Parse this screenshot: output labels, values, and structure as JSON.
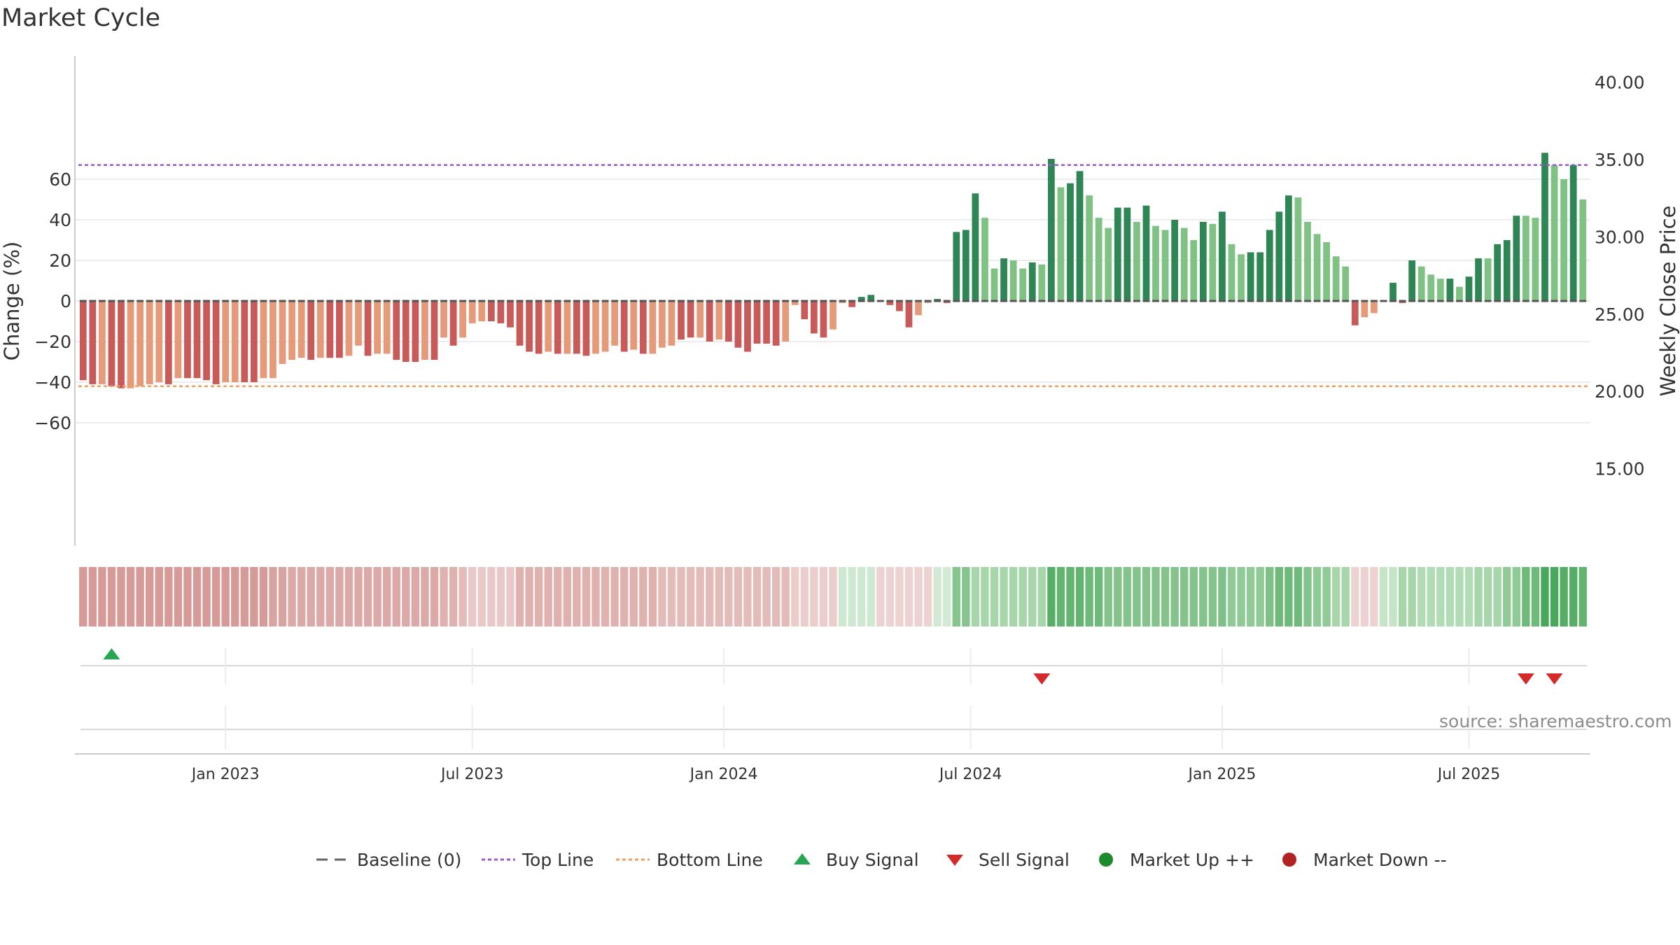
{
  "title": "Market Cycle",
  "source": "source: sharemaestro.com",
  "colors": {
    "up_dark": "#2e8654",
    "up_light": "#80c283",
    "down_dark": "#c85a5a",
    "down_light": "#e59a7a",
    "top_line": "#9b59d0",
    "bottom_line": "#f0a060",
    "buy": "#27a555",
    "sell": "#d42a2a",
    "market_up": "#1e8a2e",
    "market_down": "#b22222"
  },
  "legend": [
    {
      "key": "baseline",
      "label": "Baseline (0)"
    },
    {
      "key": "top_line",
      "label": "Top Line"
    },
    {
      "key": "bottom_line",
      "label": "Bottom Line"
    },
    {
      "key": "buy",
      "label": "Buy Signal"
    },
    {
      "key": "sell",
      "label": "Sell Signal"
    },
    {
      "key": "market_up",
      "label": "Market Up ++"
    },
    {
      "key": "market_down",
      "label": "Market Down --"
    }
  ],
  "chart_data": {
    "type": "bar",
    "y_left": {
      "label": "Change (%)",
      "range": [
        -80,
        80
      ],
      "ticks": [
        60,
        40,
        20,
        0,
        -20,
        -40,
        -60
      ],
      "tick_labels": [
        "60",
        "40",
        "20",
        "0",
        "−20",
        "−40",
        "−60"
      ]
    },
    "y_right": {
      "label": "Weekly Close Price",
      "range": [
        10.0,
        41.7
      ],
      "ticks": [
        40,
        35,
        30,
        25,
        20,
        15
      ],
      "tick_labels": [
        "40.00",
        "35.00",
        "30.00",
        "25.00",
        "20.00",
        "15.00"
      ]
    },
    "x_ticks": [
      "Jan 2023",
      "Jul 2023",
      "Jan 2024",
      "Jul 2024",
      "Jan 2025",
      "Jul 2025"
    ],
    "x_tick_index": [
      15,
      41,
      67.5,
      93.5,
      120,
      146
    ],
    "top_line": 67,
    "bottom_line": -42,
    "grid": true,
    "legend_position": "bottom",
    "bars": [
      [
        -39,
        1
      ],
      [
        -41,
        1
      ],
      [
        -41,
        0
      ],
      [
        -42,
        1
      ],
      [
        -43,
        1
      ],
      [
        -43,
        0
      ],
      [
        -42,
        0
      ],
      [
        -41,
        0
      ],
      [
        -40,
        0
      ],
      [
        -41,
        1
      ],
      [
        -38,
        0
      ],
      [
        -38,
        1
      ],
      [
        -38,
        1
      ],
      [
        -39,
        1
      ],
      [
        -41,
        1
      ],
      [
        -40,
        0
      ],
      [
        -40,
        0
      ],
      [
        -40,
        1
      ],
      [
        -40,
        1
      ],
      [
        -38,
        0
      ],
      [
        -38,
        0
      ],
      [
        -31,
        0
      ],
      [
        -29,
        0
      ],
      [
        -28,
        0
      ],
      [
        -29,
        1
      ],
      [
        -28,
        0
      ],
      [
        -28,
        1
      ],
      [
        -28,
        1
      ],
      [
        -27,
        0
      ],
      [
        -22,
        0
      ],
      [
        -27,
        1
      ],
      [
        -26,
        0
      ],
      [
        -26,
        0
      ],
      [
        -29,
        1
      ],
      [
        -30,
        1
      ],
      [
        -30,
        1
      ],
      [
        -29,
        0
      ],
      [
        -29,
        1
      ],
      [
        -18,
        0
      ],
      [
        -22,
        1
      ],
      [
        -18,
        0
      ],
      [
        -11,
        0
      ],
      [
        -10,
        0
      ],
      [
        -10,
        1
      ],
      [
        -11,
        1
      ],
      [
        -13,
        1
      ],
      [
        -22,
        1
      ],
      [
        -25,
        1
      ],
      [
        -26,
        1
      ],
      [
        -25,
        0
      ],
      [
        -26,
        1
      ],
      [
        -26,
        0
      ],
      [
        -26,
        1
      ],
      [
        -27,
        1
      ],
      [
        -26,
        0
      ],
      [
        -25,
        0
      ],
      [
        -22,
        0
      ],
      [
        -25,
        1
      ],
      [
        -24,
        0
      ],
      [
        -26,
        1
      ],
      [
        -26,
        0
      ],
      [
        -23,
        0
      ],
      [
        -22,
        0
      ],
      [
        -19,
        1
      ],
      [
        -18,
        1
      ],
      [
        -18,
        0
      ],
      [
        -20,
        1
      ],
      [
        -19,
        0
      ],
      [
        -20,
        1
      ],
      [
        -23,
        1
      ],
      [
        -25,
        1
      ],
      [
        -21,
        1
      ],
      [
        -21,
        1
      ],
      [
        -22,
        1
      ],
      [
        -20,
        0
      ],
      [
        -2,
        0
      ],
      [
        -9,
        1
      ],
      [
        -16,
        1
      ],
      [
        -18,
        1
      ],
      [
        -14,
        0
      ],
      [
        -1,
        0
      ],
      [
        -3,
        1
      ],
      [
        2,
        1
      ],
      [
        3,
        1
      ],
      [
        0,
        0
      ],
      [
        -2,
        1
      ],
      [
        -5,
        1
      ],
      [
        -13,
        1
      ],
      [
        -7,
        0
      ],
      [
        -1,
        0
      ],
      [
        1,
        1
      ],
      [
        -1,
        1
      ],
      [
        34,
        1
      ],
      [
        35,
        1
      ],
      [
        53,
        1
      ],
      [
        41,
        0
      ],
      [
        16,
        0
      ],
      [
        21,
        1
      ],
      [
        20,
        0
      ],
      [
        16,
        0
      ],
      [
        19,
        1
      ],
      [
        18,
        0
      ],
      [
        70,
        1
      ],
      [
        56,
        0
      ],
      [
        58,
        1
      ],
      [
        64,
        1
      ],
      [
        52,
        0
      ],
      [
        41,
        0
      ],
      [
        36,
        0
      ],
      [
        46,
        1
      ],
      [
        46,
        1
      ],
      [
        39,
        0
      ],
      [
        47,
        1
      ],
      [
        37,
        0
      ],
      [
        35,
        0
      ],
      [
        40,
        1
      ],
      [
        36,
        0
      ],
      [
        30,
        0
      ],
      [
        39,
        1
      ],
      [
        38,
        0
      ],
      [
        44,
        1
      ],
      [
        28,
        0
      ],
      [
        23,
        0
      ],
      [
        24,
        1
      ],
      [
        24,
        1
      ],
      [
        35,
        1
      ],
      [
        44,
        1
      ],
      [
        52,
        1
      ],
      [
        51,
        0
      ],
      [
        39,
        0
      ],
      [
        33,
        0
      ],
      [
        29,
        0
      ],
      [
        22,
        0
      ],
      [
        17,
        0
      ],
      [
        -12,
        1
      ],
      [
        -8,
        0
      ],
      [
        -6,
        0
      ],
      [
        0,
        0
      ],
      [
        9,
        1
      ],
      [
        -1,
        1
      ],
      [
        20,
        1
      ],
      [
        17,
        0
      ],
      [
        13,
        0
      ],
      [
        11,
        0
      ],
      [
        11,
        1
      ],
      [
        7,
        0
      ],
      [
        12,
        1
      ],
      [
        21,
        1
      ],
      [
        21,
        0
      ],
      [
        28,
        1
      ],
      [
        30,
        1
      ],
      [
        42,
        1
      ],
      [
        42,
        0
      ],
      [
        41,
        0
      ],
      [
        73,
        1
      ],
      [
        67,
        0
      ],
      [
        60,
        0
      ],
      [
        67,
        1
      ],
      [
        50,
        0
      ]
    ],
    "strip_colors": [
      "#d69a98",
      "#d69a98",
      "#d69a98",
      "#d69a98",
      "#d69a98",
      "#d69a98",
      "#d69a98",
      "#d69a98",
      "#d69a98",
      "#d69a98",
      "#d69a98",
      "#d69a98",
      "#d69a98",
      "#d69a98",
      "#d69a98",
      "#d69a98",
      "#d69a98",
      "#d69a98",
      "#d69a98",
      "#d69a98",
      "#d8a4a2",
      "#d8a4a2",
      "#dba9a7",
      "#dba9a7",
      "#dba9a7",
      "#dba9a7",
      "#dba9a7",
      "#dba9a7",
      "#dba9a7",
      "#dba9a7",
      "#dba9a7",
      "#dba9a7",
      "#dba9a7",
      "#dba9a7",
      "#dba9a7",
      "#dba9a7",
      "#dba9a7",
      "#dba9a7",
      "#dfb2b0",
      "#dfb2b0",
      "#e3bcba",
      "#e8c9c7",
      "#e8c9c7",
      "#e8c9c7",
      "#e8c9c7",
      "#e8c9c7",
      "#dfb2b0",
      "#dfb2b0",
      "#dfb2b0",
      "#dfb2b0",
      "#dfb2b0",
      "#dfb2b0",
      "#dfb2b0",
      "#dfb2b0",
      "#dfb2b0",
      "#dfb2b0",
      "#dfb2b0",
      "#dfb2b0",
      "#dfb2b0",
      "#dfb2b0",
      "#dfb2b0",
      "#e3bcba",
      "#e3bcba",
      "#e3bcba",
      "#e3bcba",
      "#e3bcba",
      "#e3bcba",
      "#e3bcba",
      "#e3bcba",
      "#e3bcba",
      "#e3bcba",
      "#e3bcba",
      "#e3bcba",
      "#e3bcba",
      "#e3bcba",
      "#ebcecc",
      "#ebcecc",
      "#ebcecc",
      "#ebcecc",
      "#ebcecc",
      "#cfe8d2",
      "#cfe8d2",
      "#cfe8d2",
      "#cfe8d2",
      "#ecd2d0",
      "#ecd2d0",
      "#ecd2d0",
      "#ecd2d0",
      "#ecd2d0",
      "#ecd2d0",
      "#d2ead4",
      "#d2ead4",
      "#86c68e",
      "#86c68e",
      "#a6d6aa",
      "#a6d6aa",
      "#a6d6aa",
      "#a6d6aa",
      "#a6d6aa",
      "#a6d6aa",
      "#a6d6aa",
      "#a6d6aa",
      "#56ae66",
      "#62b470",
      "#62b470",
      "#62b470",
      "#6fba7b",
      "#6fba7b",
      "#84c48c",
      "#84c48c",
      "#84c48c",
      "#84c48c",
      "#84c48c",
      "#84c48c",
      "#84c48c",
      "#84c48c",
      "#84c48c",
      "#84c48c",
      "#84c48c",
      "#84c48c",
      "#7ec088",
      "#90ca96",
      "#90ca96",
      "#90ca96",
      "#90ca96",
      "#7ec088",
      "#6fba7b",
      "#6fba7b",
      "#6fba7b",
      "#84c48c",
      "#90ca96",
      "#90ca96",
      "#a6d6aa",
      "#a6d6aa",
      "#ecd2d0",
      "#ecd2d0",
      "#ecd2d0",
      "#c6e4c8",
      "#c6e4c8",
      "#a6d6aa",
      "#a6d6aa",
      "#b2dcb5",
      "#b2dcb5",
      "#b2dcb5",
      "#b2dcb5",
      "#b2dcb5",
      "#b2dcb5",
      "#a6d6aa",
      "#a6d6aa",
      "#a6d6aa",
      "#90ca96",
      "#90ca96",
      "#6fba7b",
      "#6fba7b",
      "#4aa85c",
      "#4aa85c",
      "#56ae66",
      "#56ae66",
      "#62b470"
    ],
    "buy_signal_bars": [
      3
    ],
    "sell_signal_bars": [
      101,
      152,
      155
    ]
  }
}
